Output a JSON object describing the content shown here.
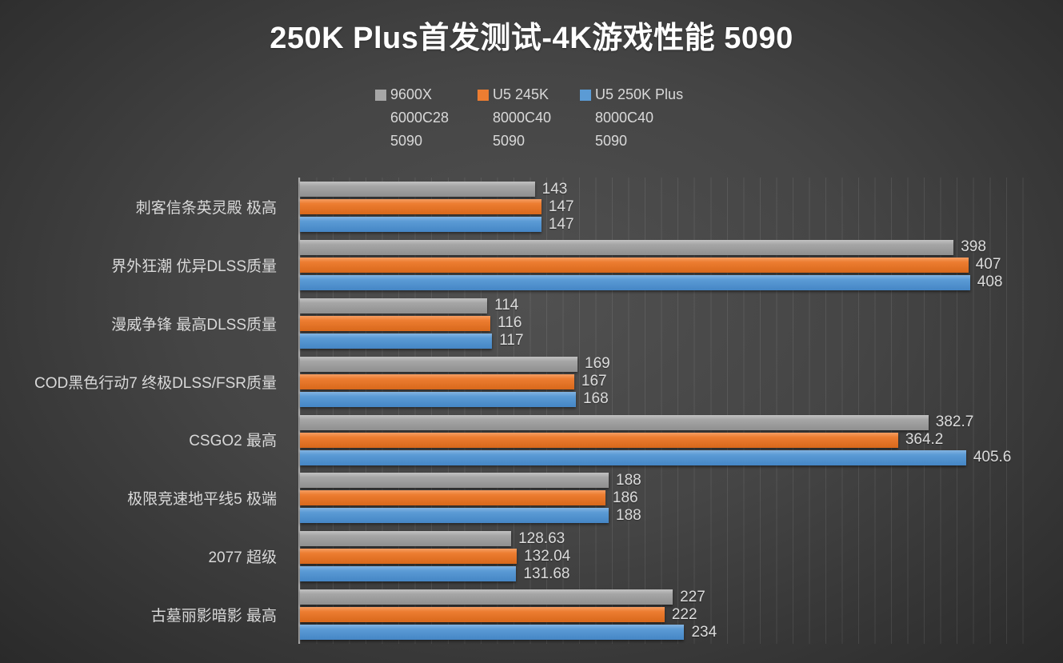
{
  "title": "250K Plus首发测试-4K游戏性能 5090",
  "legend": {
    "items": [
      {
        "name": "9600X",
        "line2": "6000C28",
        "line3": "5090",
        "color": "#a6a6a6"
      },
      {
        "name": "U5 245K",
        "line2": "8000C40",
        "line3": "5090",
        "color": "#ed7d31"
      },
      {
        "name": "U5 250K Plus",
        "line2": "8000C40",
        "line3": "5090",
        "color": "#5b9bd5"
      }
    ]
  },
  "chart_data": {
    "type": "bar",
    "orientation": "horizontal",
    "title": "250K Plus首发测试-4K游戏性能 5090",
    "categories": [
      "刺客信条英灵殿 极高",
      "界外狂潮 优异DLSS质量",
      "漫威争锋 最高DLSS质量",
      "COD黑色行动7 终极DLSS/FSR质量",
      "CSGO2 最高",
      "极限竞速地平线5 极端",
      "2077 超级",
      "古墓丽影暗影 最高"
    ],
    "series": [
      {
        "name": "9600X 6000C28 5090",
        "color": "#a6a6a6",
        "color_light": "#c2c2c2",
        "color_dark": "#8f8f8f",
        "values": [
          143,
          398,
          114,
          169,
          382.7,
          188,
          128.63,
          227
        ],
        "labels": [
          "143",
          "398",
          "114",
          "169",
          "382.7",
          "188",
          "128.63",
          "227"
        ]
      },
      {
        "name": "U5 245K 8000C40 5090",
        "color": "#ed7d31",
        "color_light": "#f59e63",
        "color_dark": "#d8681b",
        "values": [
          147,
          407,
          116,
          167,
          364.2,
          186,
          132.04,
          222
        ],
        "labels": [
          "147",
          "407",
          "116",
          "167",
          "364.2",
          "186",
          "132.04",
          "222"
        ]
      },
      {
        "name": "U5 250K Plus 8000C40 5090",
        "color": "#5b9bd5",
        "color_light": "#84b4e1",
        "color_dark": "#4586c5",
        "values": [
          147,
          408,
          117,
          168,
          405.6,
          188,
          131.68,
          234
        ],
        "labels": [
          "147",
          "408",
          "117",
          "168",
          "405.6",
          "188",
          "131.68",
          "234"
        ]
      }
    ],
    "xlim": [
      0,
      450
    ],
    "gridline_step": 10,
    "grid": true,
    "legend_position": "top"
  }
}
